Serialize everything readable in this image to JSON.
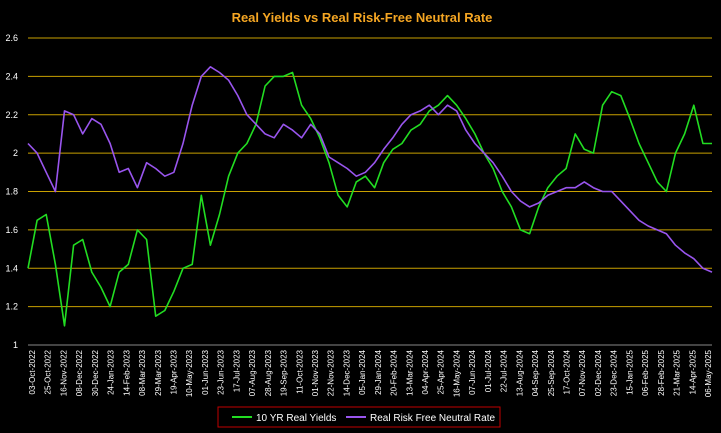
{
  "chart_data": {
    "type": "line",
    "title": "Real Yields vs Real Risk-Free Neutral Rate",
    "xlabel": "",
    "ylabel": "",
    "ylim": [
      1,
      2.6
    ],
    "yticks": [
      "1",
      "1.2",
      "1.4",
      "1.6",
      "1.8",
      "2",
      "2.2",
      "2.4",
      "2.6"
    ],
    "grid": true,
    "legend_position": "bottom",
    "colors": {
      "background": "#000000",
      "title": "#F5A623",
      "grid": "#C8A000",
      "axis_text": "#FFFFFF",
      "legend_border": "#C00000"
    },
    "x_labels": [
      "03-Oct-2022",
      "25-Oct-2022",
      "16-Nov-2022",
      "08-Dec-2022",
      "30-Dec-2022",
      "24-Jan-2023",
      "14-Feb-2023",
      "08-Mar-2023",
      "29-Mar-2023",
      "19-Apr-2023",
      "10-May-2023",
      "01-Jun-2023",
      "23-Jun-2023",
      "17-Jul-2023",
      "07-Aug-2023",
      "28-Aug-2023",
      "19-Sep-2023",
      "11-Oct-2023",
      "01-Nov-2023",
      "22-Nov-2023",
      "14-Dec-2023",
      "05-Jan-2024",
      "29-Jan-2024",
      "20-Feb-2024",
      "13-Mar-2024",
      "04-Apr-2024",
      "25-Apr-2024",
      "16-May-2024",
      "07-Jun-2024",
      "01-Jul-2024",
      "22-Jul-2024",
      "13-Aug-2024",
      "04-Sep-2024",
      "25-Sep-2024",
      "17-Oct-2024",
      "07-Nov-2024",
      "02-Dec-2024",
      "23-Dec-2024",
      "15-Jan-2025",
      "06-Feb-2025",
      "28-Feb-2025",
      "21-Mar-2025",
      "14-Apr-2025",
      "06-May-2025"
    ],
    "series": [
      {
        "name": "10 YR Real Yields",
        "color": "#22DD22",
        "values": [
          1.4,
          1.65,
          1.68,
          1.42,
          1.1,
          1.52,
          1.55,
          1.38,
          1.3,
          1.2,
          1.38,
          1.42,
          1.6,
          1.55,
          1.15,
          1.18,
          1.28,
          1.4,
          1.42,
          1.78,
          1.52,
          1.68,
          1.88,
          2.0,
          2.05,
          2.15,
          2.35,
          2.4,
          2.4,
          2.42,
          2.25,
          2.18,
          2.08,
          1.95,
          1.78,
          1.72,
          1.85,
          1.88,
          1.82,
          1.95,
          2.02,
          2.05,
          2.12,
          2.15,
          2.22,
          2.25,
          2.3,
          2.25,
          2.18,
          2.1,
          2.0,
          1.92,
          1.8,
          1.72,
          1.6,
          1.58,
          1.72,
          1.82,
          1.88,
          1.92,
          2.1,
          2.02,
          2.0,
          2.25,
          2.32,
          2.3,
          2.18,
          2.05,
          1.95,
          1.85,
          1.8,
          2.0,
          2.1,
          2.25,
          2.05,
          2.05
        ]
      },
      {
        "name": "Real Risk Free Neutral Rate",
        "color": "#9955EE",
        "values": [
          2.05,
          2.0,
          1.9,
          1.8,
          2.22,
          2.2,
          2.1,
          2.18,
          2.15,
          2.05,
          1.9,
          1.92,
          1.82,
          1.95,
          1.92,
          1.88,
          1.9,
          2.05,
          2.25,
          2.4,
          2.45,
          2.42,
          2.38,
          2.3,
          2.2,
          2.15,
          2.1,
          2.08,
          2.15,
          2.12,
          2.08,
          2.15,
          2.1,
          1.98,
          1.95,
          1.92,
          1.88,
          1.9,
          1.95,
          2.02,
          2.08,
          2.15,
          2.2,
          2.22,
          2.25,
          2.2,
          2.25,
          2.22,
          2.12,
          2.05,
          2.0,
          1.95,
          1.88,
          1.8,
          1.75,
          1.72,
          1.74,
          1.78,
          1.8,
          1.82,
          1.82,
          1.85,
          1.82,
          1.8,
          1.8,
          1.75,
          1.7,
          1.65,
          1.62,
          1.6,
          1.58,
          1.52,
          1.48,
          1.45,
          1.4,
          1.38
        ]
      }
    ]
  }
}
